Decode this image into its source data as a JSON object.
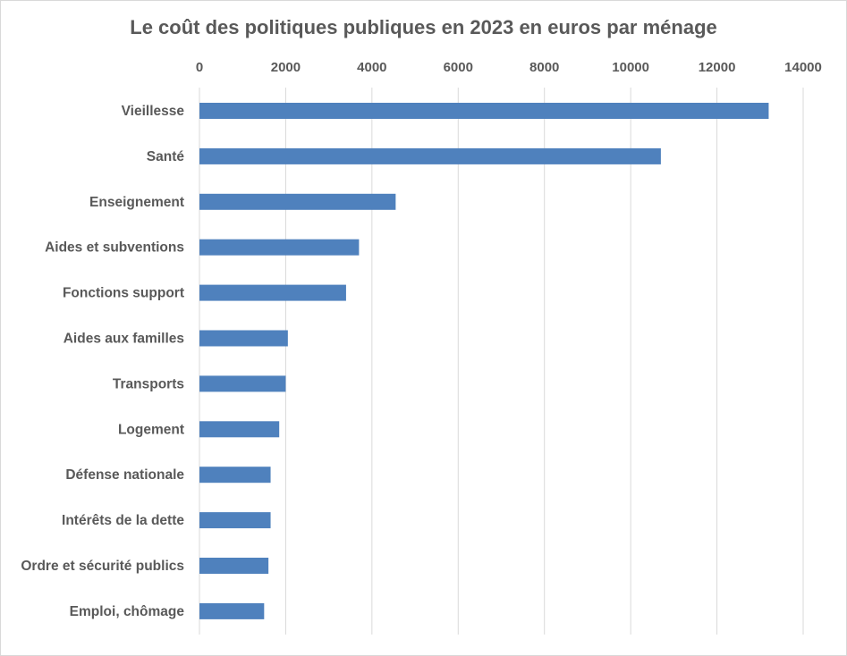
{
  "chart_data": {
    "type": "bar",
    "orientation": "horizontal",
    "title": "Le coût des politiques publiques en 2023 en euros par ménage",
    "xlabel": "",
    "ylabel": "",
    "xlim": [
      0,
      14000
    ],
    "x_ticks": [
      0,
      2000,
      4000,
      6000,
      8000,
      10000,
      12000,
      14000
    ],
    "x_axis_position": "top",
    "grid": true,
    "legend": "none",
    "bar_color": "#4F81BD",
    "categories": [
      "Vieillesse",
      "Santé",
      "Enseignement",
      "Aides et subventions",
      "Fonctions support",
      "Aides aux familles",
      "Transports",
      "Logement",
      "Défense nationale",
      "Intérêts de la dette",
      "Ordre et sécurité publics",
      "Emploi, chômage"
    ],
    "values": [
      13200,
      10700,
      4550,
      3700,
      3400,
      2050,
      2000,
      1850,
      1650,
      1650,
      1600,
      1500
    ]
  }
}
